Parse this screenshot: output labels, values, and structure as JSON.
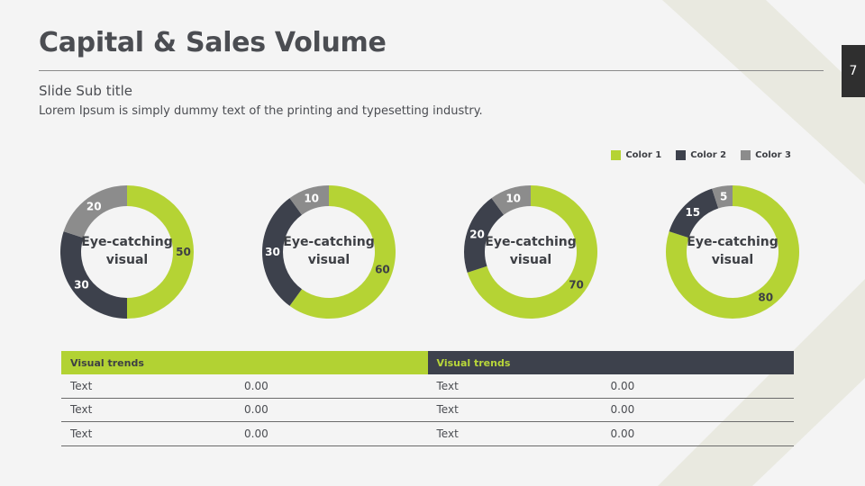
{
  "slide": {
    "title": "Capital & Sales Volume",
    "subtitle": "Slide Sub title",
    "body": "Lorem Ipsum is simply dummy text of the printing and typesetting industry.",
    "page_number": "7"
  },
  "colors": {
    "color1": "#b5d334",
    "color2": "#3d414c",
    "color3": "#8c8c8c",
    "background": "#f4f4f4"
  },
  "legend": [
    {
      "label": "Color 1",
      "color": "#b5d334"
    },
    {
      "label": "Color 2",
      "color": "#3d414c"
    },
    {
      "label": "Color 3",
      "color": "#8c8c8c"
    }
  ],
  "chart_data": [
    {
      "type": "pie",
      "donut": true,
      "center_label": [
        "Eye-catching",
        "visual"
      ],
      "series": [
        {
          "name": "Color 1",
          "value": 50
        },
        {
          "name": "Color 2",
          "value": 30
        },
        {
          "name": "Color 3",
          "value": 20
        }
      ]
    },
    {
      "type": "pie",
      "donut": true,
      "center_label": [
        "Eye-catching",
        "visual"
      ],
      "series": [
        {
          "name": "Color 1",
          "value": 60
        },
        {
          "name": "Color 2",
          "value": 30
        },
        {
          "name": "Color 3",
          "value": 10
        }
      ]
    },
    {
      "type": "pie",
      "donut": true,
      "center_label": [
        "Eye-catching",
        "visual"
      ],
      "series": [
        {
          "name": "Color 1",
          "value": 70
        },
        {
          "name": "Color 2",
          "value": 20
        },
        {
          "name": "Color 3",
          "value": 10
        }
      ]
    },
    {
      "type": "pie",
      "donut": true,
      "center_label": [
        "Eye-catching",
        "visual"
      ],
      "series": [
        {
          "name": "Color 1",
          "value": 80
        },
        {
          "name": "Color 2",
          "value": 15
        },
        {
          "name": "Color 3",
          "value": 5
        }
      ]
    }
  ],
  "table": {
    "headers": [
      "Visual trends",
      "Visual trends"
    ],
    "rows": [
      {
        "left": [
          "Text",
          "0.00"
        ],
        "right": [
          "Text",
          "0.00"
        ]
      },
      {
        "left": [
          "Text",
          "0.00"
        ],
        "right": [
          "Text",
          "0.00"
        ]
      },
      {
        "left": [
          "Text",
          "0.00"
        ],
        "right": [
          "Text",
          "0.00"
        ]
      }
    ]
  }
}
